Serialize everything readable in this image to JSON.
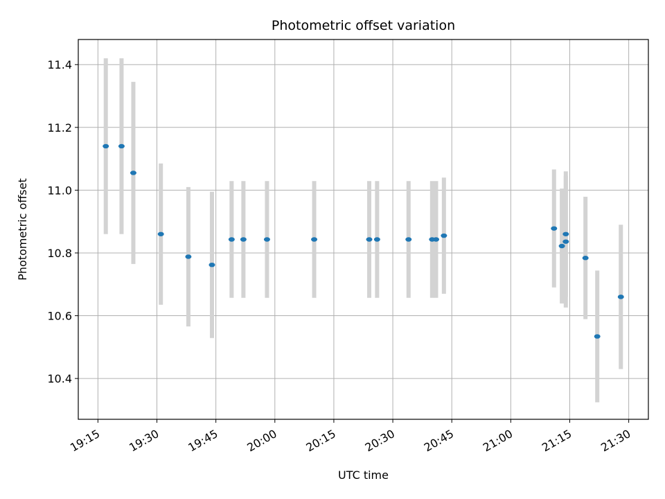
{
  "chart_data": {
    "type": "scatter",
    "title": "Photometric offset variation",
    "xlabel": "UTC time",
    "ylabel": "Photometric offset",
    "grid": true,
    "x_ticks": [
      "19:15",
      "19:30",
      "19:45",
      "20:00",
      "20:15",
      "20:30",
      "20:45",
      "21:00",
      "21:15",
      "21:30"
    ],
    "y_ticks": [
      "10.4",
      "10.6",
      "10.8",
      "11.0",
      "11.2",
      "11.4"
    ],
    "xlim": [
      "19:10",
      "21:35"
    ],
    "ylim": [
      10.27,
      11.48
    ],
    "colors": {
      "point": "#1f77b4",
      "errorbar": "#d3d3d3",
      "grid": "#b0b0b0"
    },
    "points": [
      {
        "x": "19:17",
        "y": 11.14,
        "err": 0.28
      },
      {
        "x": "19:21",
        "y": 11.14,
        "err": 0.28
      },
      {
        "x": "19:24",
        "y": 11.055,
        "err": 0.29
      },
      {
        "x": "19:31",
        "y": 10.86,
        "err": 0.225
      },
      {
        "x": "19:38",
        "y": 10.788,
        "err": 0.222
      },
      {
        "x": "19:44",
        "y": 10.762,
        "err": 0.233
      },
      {
        "x": "19:49",
        "y": 10.843,
        "err": 0.186
      },
      {
        "x": "19:52",
        "y": 10.843,
        "err": 0.186
      },
      {
        "x": "19:58",
        "y": 10.843,
        "err": 0.186
      },
      {
        "x": "20:10",
        "y": 10.843,
        "err": 0.186
      },
      {
        "x": "20:24",
        "y": 10.843,
        "err": 0.186
      },
      {
        "x": "20:26",
        "y": 10.843,
        "err": 0.186
      },
      {
        "x": "20:34",
        "y": 10.843,
        "err": 0.186
      },
      {
        "x": "20:40",
        "y": 10.843,
        "err": 0.186
      },
      {
        "x": "20:41",
        "y": 10.843,
        "err": 0.186
      },
      {
        "x": "20:43",
        "y": 10.855,
        "err": 0.185
      },
      {
        "x": "21:11",
        "y": 10.878,
        "err": 0.188
      },
      {
        "x": "21:13",
        "y": 10.822,
        "err": 0.183
      },
      {
        "x": "21:14",
        "y": 10.86,
        "err": 0.2
      },
      {
        "x": "21:14",
        "y": 10.836,
        "err": 0.21
      },
      {
        "x": "21:19",
        "y": 10.784,
        "err": 0.195
      },
      {
        "x": "21:22",
        "y": 10.534,
        "err": 0.21
      },
      {
        "x": "21:28",
        "y": 10.66,
        "err": 0.23
      }
    ]
  }
}
